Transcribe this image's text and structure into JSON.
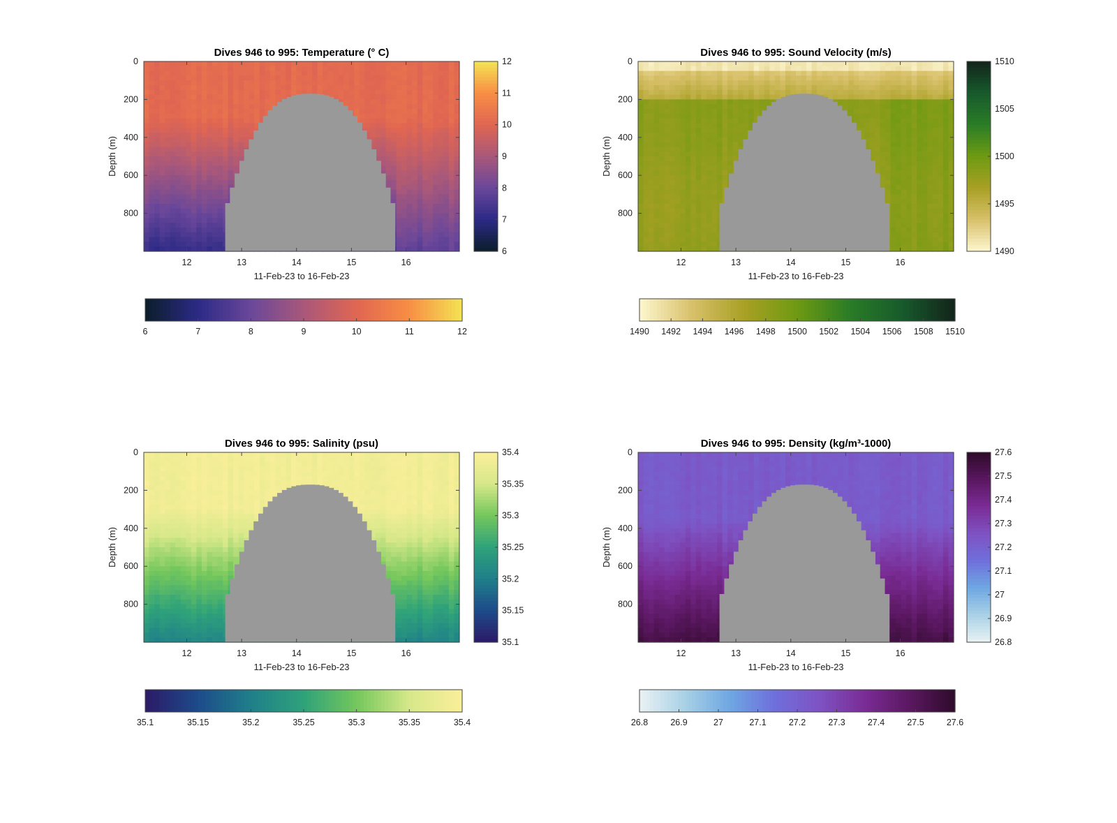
{
  "chart_data": [
    {
      "type": "heatmap",
      "title": "Dives 946 to 995: Temperature (° C)",
      "xlabel": "11-Feb-23 to 16-Feb-23",
      "ylabel": "Depth (m)",
      "x_ticks": [
        "12",
        "13",
        "14",
        "15",
        "16"
      ],
      "y_ticks": [
        "0",
        "200",
        "400",
        "600",
        "800"
      ],
      "xlim": [
        "11-Feb-23",
        "16-Feb-23"
      ],
      "ylim": [
        0,
        1000
      ],
      "y_reversed": true,
      "colorbar_ticks": [
        "6",
        "7",
        "8",
        "9",
        "10",
        "11",
        "12"
      ],
      "horizontal_colorbar_ticks": [
        "6",
        "7",
        "8",
        "9",
        "10",
        "11",
        "12"
      ],
      "clim": [
        6,
        12
      ],
      "colormap": [
        "#0b1e2a",
        "#2c2a86",
        "#6a479a",
        "#a9587a",
        "#e06652",
        "#f88e44",
        "#f4e454"
      ]
    },
    {
      "type": "heatmap",
      "title": "Dives 946 to 995: Sound Velocity (m/s)",
      "xlabel": "11-Feb-23 to 16-Feb-23",
      "ylabel": "Depth (m)",
      "x_ticks": [
        "12",
        "13",
        "14",
        "15",
        "16"
      ],
      "y_ticks": [
        "0",
        "200",
        "400",
        "600",
        "800"
      ],
      "xlim": [
        "11-Feb-23",
        "16-Feb-23"
      ],
      "ylim": [
        0,
        1000
      ],
      "y_reversed": true,
      "colorbar_ticks": [
        "1490",
        "1495",
        "1500",
        "1505",
        "1510"
      ],
      "horizontal_colorbar_ticks": [
        "1490",
        "1492",
        "1494",
        "1496",
        "1498",
        "1500",
        "1502",
        "1504",
        "1506",
        "1508",
        "1510"
      ],
      "clim": [
        1490,
        1510
      ],
      "colormap": [
        "#fdf7cf",
        "#d8c06a",
        "#a8a024",
        "#6e9a12",
        "#2a7c26",
        "#175a2c",
        "#12241a"
      ]
    },
    {
      "type": "heatmap",
      "title": "Dives 946 to 995: Salinity (psu)",
      "xlabel": "11-Feb-23 to 16-Feb-23",
      "ylabel": "Depth (m)",
      "x_ticks": [
        "12",
        "13",
        "14",
        "15",
        "16"
      ],
      "y_ticks": [
        "0",
        "200",
        "400",
        "600",
        "800"
      ],
      "xlim": [
        "11-Feb-23",
        "16-Feb-23"
      ],
      "ylim": [
        0,
        1000
      ],
      "y_reversed": true,
      "colorbar_ticks": [
        "35.1",
        "35.15",
        "35.2",
        "35.25",
        "35.3",
        "35.35",
        "35.4"
      ],
      "horizontal_colorbar_ticks": [
        "35.1",
        "35.15",
        "35.2",
        "35.25",
        "35.3",
        "35.35",
        "35.4"
      ],
      "clim": [
        35.1,
        35.4
      ],
      "colormap": [
        "#2b1a66",
        "#1d4b8a",
        "#1f7f8a",
        "#2fa27a",
        "#74c75c",
        "#d6e889",
        "#fbef9a"
      ]
    },
    {
      "type": "heatmap",
      "title": "Dives 946 to 995: Density (kg/m³-1000)",
      "xlabel": "11-Feb-23 to 16-Feb-23",
      "ylabel": "Depth (m)",
      "x_ticks": [
        "12",
        "13",
        "14",
        "15",
        "16"
      ],
      "y_ticks": [
        "0",
        "200",
        "400",
        "600",
        "800"
      ],
      "xlim": [
        "11-Feb-23",
        "16-Feb-23"
      ],
      "ylim": [
        0,
        1000
      ],
      "y_reversed": true,
      "colorbar_ticks": [
        "26.8",
        "26.9",
        "27",
        "27.1",
        "27.2",
        "27.3",
        "27.4",
        "27.5",
        "27.6"
      ],
      "horizontal_colorbar_ticks": [
        "26.8",
        "26.9",
        "27",
        "27.1",
        "27.2",
        "27.3",
        "27.4",
        "27.5",
        "27.6"
      ],
      "clim": [
        26.8,
        27.6
      ],
      "colormap": [
        "#e9f2f4",
        "#a9d1e6",
        "#6ea7e2",
        "#6f6fdc",
        "#7e52c2",
        "#7a2c95",
        "#5a1760",
        "#2e0b2a"
      ]
    }
  ],
  "colors": {
    "no_data_fill": "#999999",
    "axis": "#444444"
  }
}
